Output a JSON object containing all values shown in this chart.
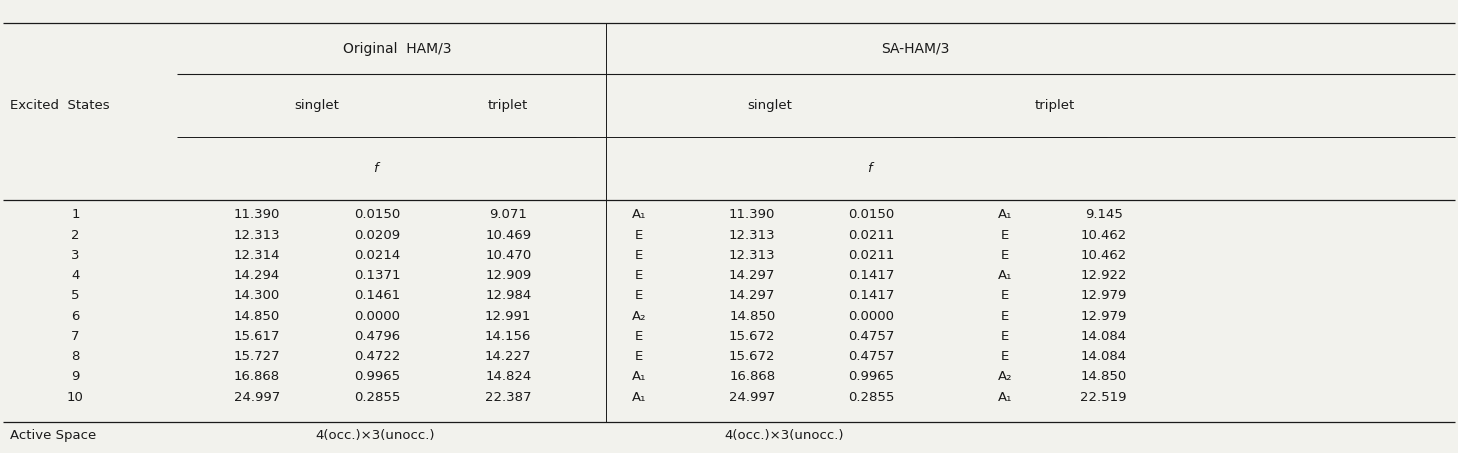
{
  "rows": [
    [
      "1",
      "11.390",
      "0.0150",
      "9.071",
      "A₁",
      "11.390",
      "0.0150",
      "A₁",
      "9.145"
    ],
    [
      "2",
      "12.313",
      "0.0209",
      "10.469",
      "E",
      "12.313",
      "0.0211",
      "E",
      "10.462"
    ],
    [
      "3",
      "12.314",
      "0.0214",
      "10.470",
      "E",
      "12.313",
      "0.0211",
      "E",
      "10.462"
    ],
    [
      "4",
      "14.294",
      "0.1371",
      "12.909",
      "E",
      "14.297",
      "0.1417",
      "A₁",
      "12.922"
    ],
    [
      "5",
      "14.300",
      "0.1461",
      "12.984",
      "E",
      "14.297",
      "0.1417",
      "E",
      "12.979"
    ],
    [
      "6",
      "14.850",
      "0.0000",
      "12.991",
      "A₂",
      "14.850",
      "0.0000",
      "E",
      "12.979"
    ],
    [
      "7",
      "15.617",
      "0.4796",
      "14.156",
      "E",
      "15.672",
      "0.4757",
      "E",
      "14.084"
    ],
    [
      "8",
      "15.727",
      "0.4722",
      "14.227",
      "E",
      "15.672",
      "0.4757",
      "E",
      "14.084"
    ],
    [
      "9",
      "16.868",
      "0.9965",
      "14.824",
      "A₁",
      "16.868",
      "0.9965",
      "A₂",
      "14.850"
    ],
    [
      "10",
      "24.997",
      "0.2855",
      "22.387",
      "A₁",
      "24.997",
      "0.2855",
      "A₁",
      "22.519"
    ]
  ],
  "footer_left": "Active Space",
  "footer_orig": "4(occ.)×3(unocc.)",
  "footer_sa": "4(occ.)×3(unocc.)",
  "bg_color": "#f2f2ed",
  "text_color": "#1a1a1a",
  "font_size": 9.5,
  "figsize": [
    14.58,
    4.53
  ]
}
